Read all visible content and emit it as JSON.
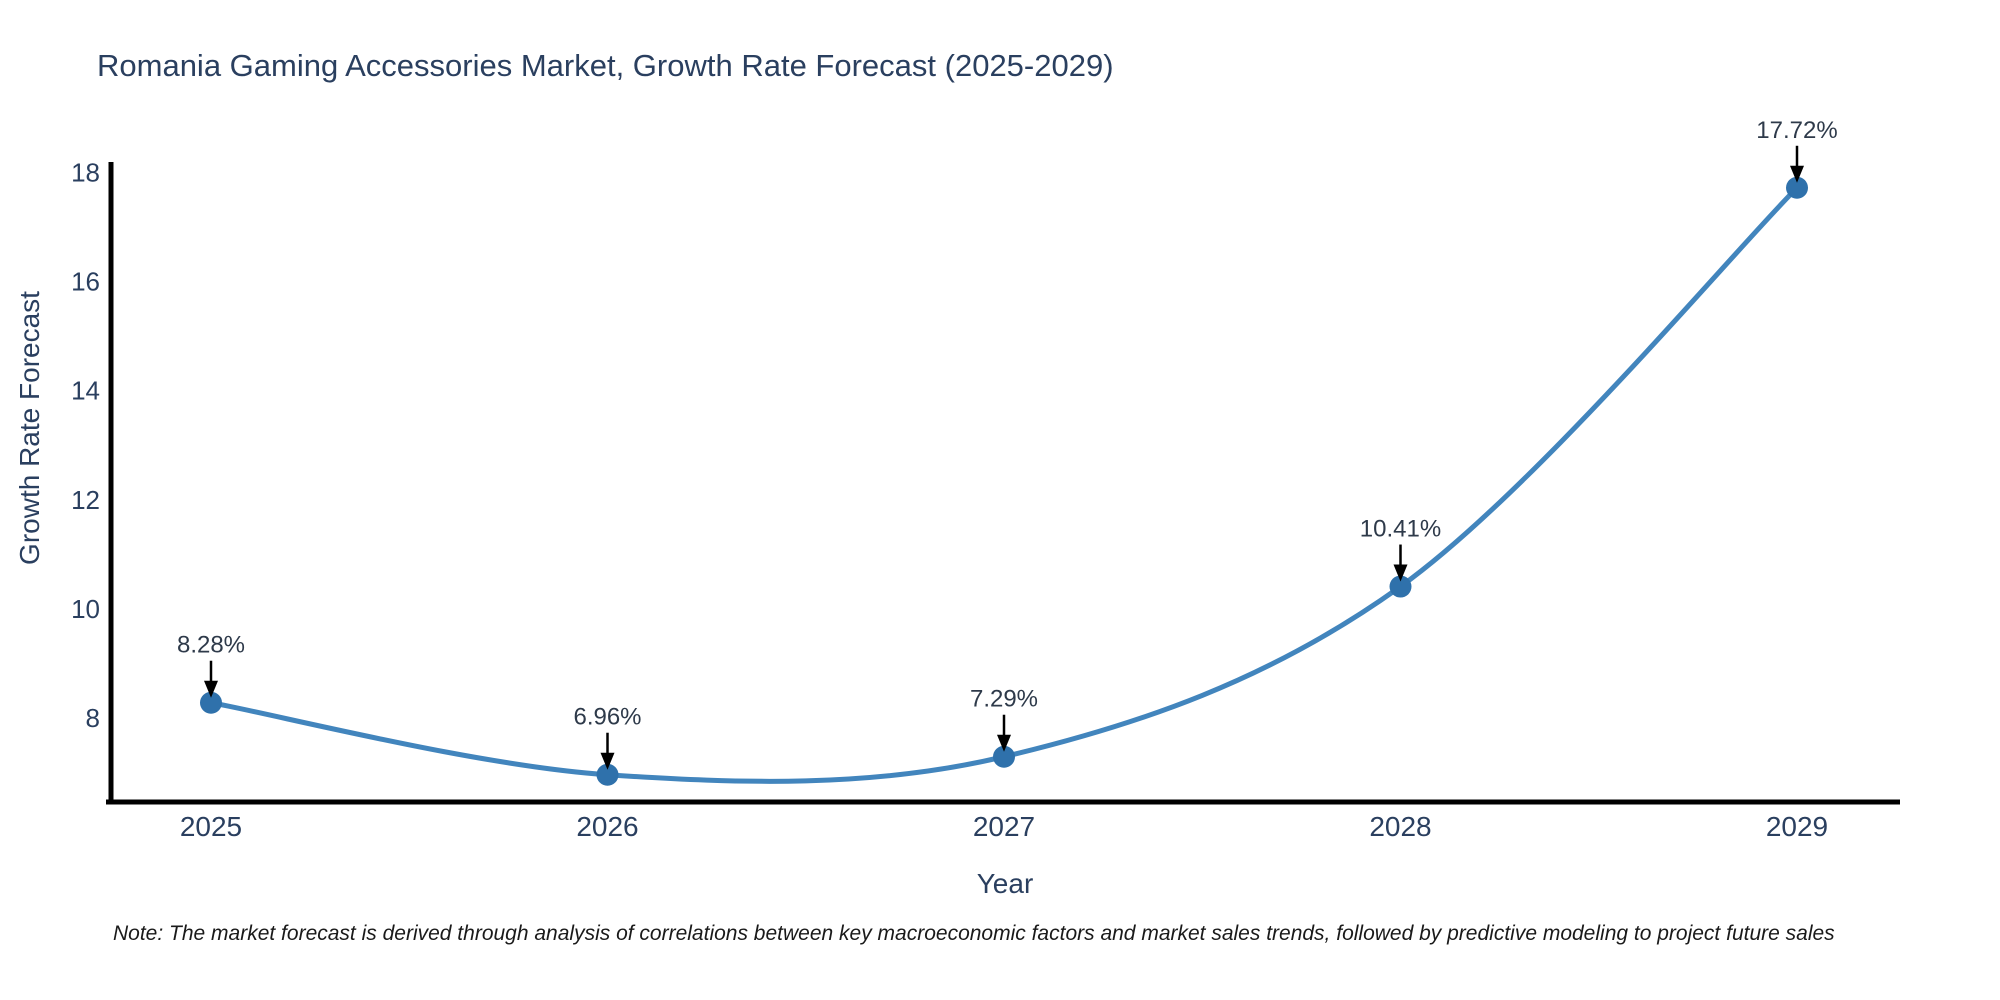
{
  "chart_data": {
    "type": "line",
    "title": "Romania Gaming Accessories Market, Growth Rate Forecast (2025-2029)",
    "xlabel": "Year",
    "ylabel": "Growth Rate Forecast",
    "x": [
      2025,
      2026,
      2027,
      2028,
      2029
    ],
    "values": [
      8.28,
      6.96,
      7.29,
      10.41,
      17.72
    ],
    "point_labels": [
      "8.28%",
      "6.96%",
      "7.29%",
      "10.41%",
      "17.72%"
    ],
    "y_ticks": [
      8,
      10,
      12,
      14,
      16,
      18
    ],
    "ylim": [
      6.45,
      18.25
    ],
    "xlim": [
      2024.73,
      2029.26
    ],
    "grid": false,
    "legend": "none",
    "line_color": "#4285bd",
    "marker_color": "#2f71ab",
    "axis_line_color": "#000000",
    "arrow_color": "#000000",
    "text_color": "#2a3f5f",
    "annotation_color": "#2e3a4a",
    "note": "Note: The market forecast is derived through analysis of correlations between key macroeconomic factors and market sales trends, followed by predictive modeling to project future sales"
  }
}
